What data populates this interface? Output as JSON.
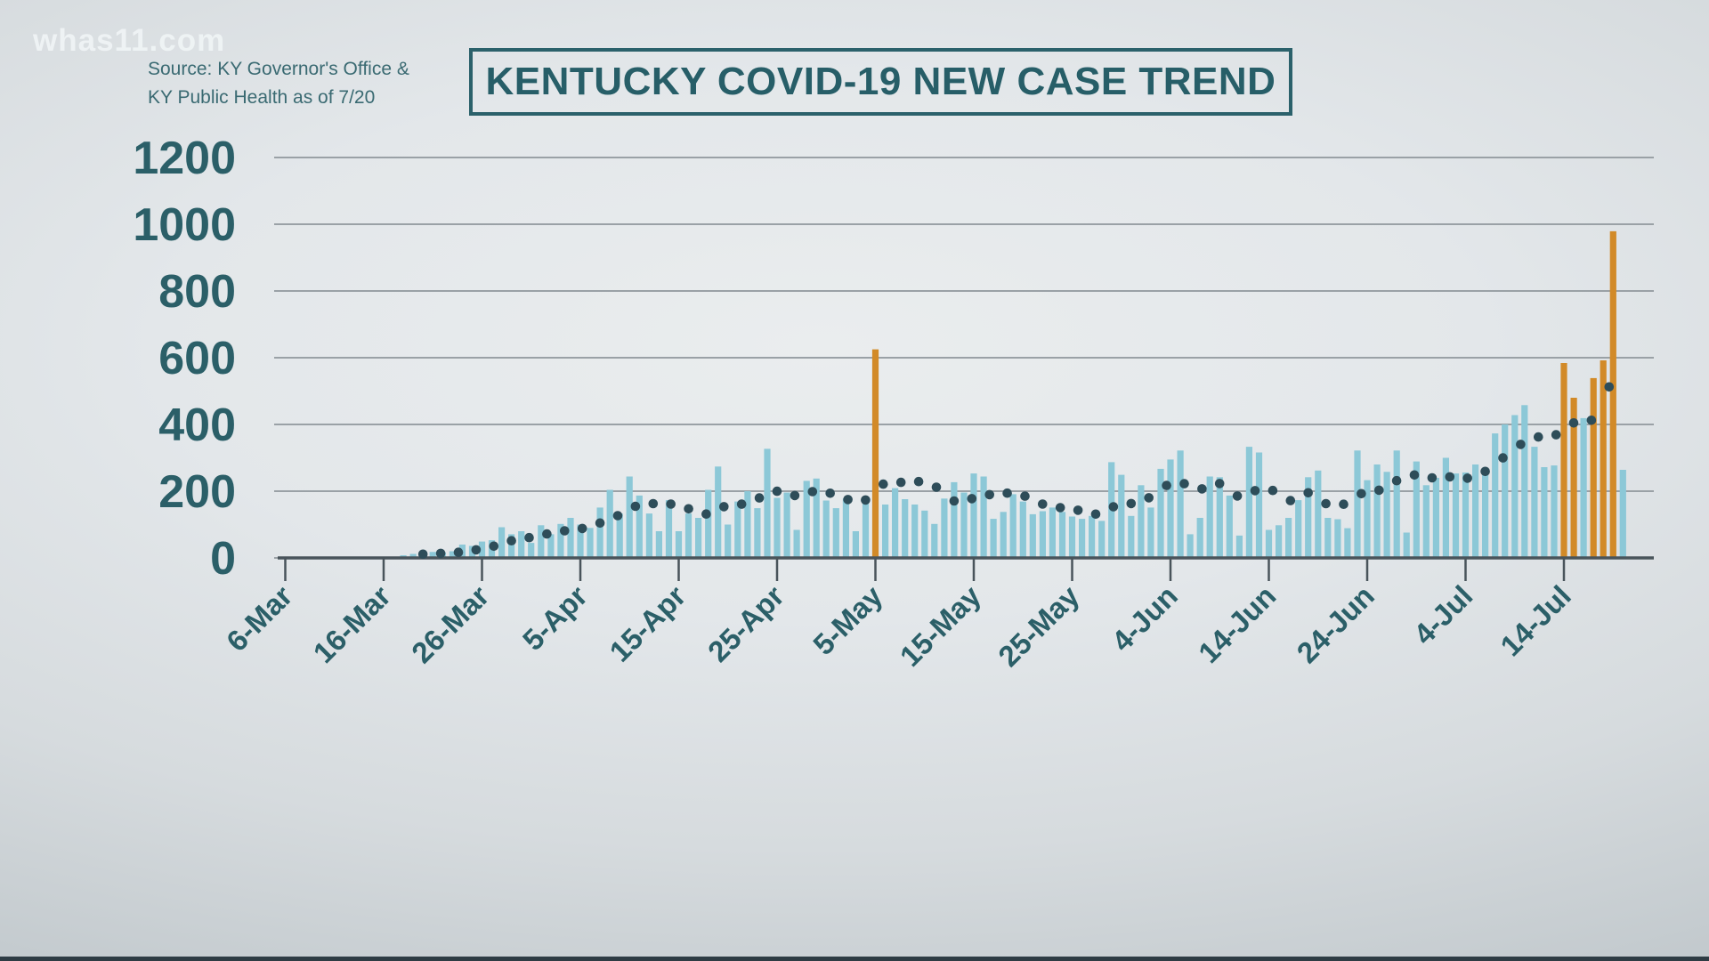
{
  "branding": {
    "logo_text": "whas11.com"
  },
  "source": {
    "line1": "Source: KY Governor's Office &",
    "line2": "KY Public Health as of 7/20"
  },
  "colors": {
    "bar": "#8cc8d7",
    "highlight": "#d28a28",
    "avg_dot": "#2e4d59",
    "grid": "#9aa1a6",
    "axis": "#49545b",
    "tick": "#49545b",
    "axis_text": "#2b5f68",
    "title": "#275e68"
  },
  "chart_data": {
    "type": "bar",
    "title": "KENTUCKY COVID-19 NEW CASE TREND",
    "xlabel": "",
    "ylabel": "",
    "ylim": [
      0,
      1200
    ],
    "y_ticks": [
      0,
      200,
      400,
      600,
      800,
      1000,
      1200
    ],
    "x_tick_labels": [
      "6-Mar",
      "16-Mar",
      "26-Mar",
      "5-Apr",
      "15-Apr",
      "25-Apr",
      "5-May",
      "15-May",
      "25-May",
      "4-Jun",
      "14-Jun",
      "24-Jun",
      "4-Jul",
      "14-Jul"
    ],
    "x_tick_interval_days": 10,
    "grid": true,
    "legend": "none",
    "series_start_date": "18-Mar",
    "series_start_offset_days_from_6_Mar": 12,
    "series": [
      {
        "name": "daily-new-cases",
        "type": "bar",
        "values": [
          8,
          12,
          14,
          18,
          16,
          20,
          40,
          36,
          49,
          53,
          92,
          71,
          80,
          45,
          98,
          71,
          102,
          120,
          100,
          90,
          151,
          204,
          133,
          244,
          187,
          133,
          80,
          173,
          80,
          133,
          120,
          204,
          274,
          100,
          169,
          200,
          149,
          327,
          180,
          196,
          84,
          231,
          238,
          172,
          149,
          178,
          80,
          167,
          625,
          160,
          209,
          176,
          160,
          142,
          102,
          178,
          227,
          196,
          253,
          244,
          117,
          138,
          191,
          169,
          131,
          140,
          151,
          138,
          124,
          117,
          126,
          111,
          287,
          249,
          126,
          218,
          151,
          267,
          295,
          322,
          71,
          120,
          244,
          242,
          187,
          67,
          333,
          316,
          84,
          98,
          120,
          173,
          242,
          262,
          120,
          116,
          89,
          322,
          233,
          280,
          258,
          322,
          76,
          289,
          218,
          240,
          300,
          253,
          256,
          280,
          268,
          373,
          400,
          428,
          458,
          333,
          272,
          277,
          584,
          480,
          419,
          539,
          592,
          979,
          264
        ],
        "highlight_indices": [
          48,
          118,
          119,
          121,
          122,
          123
        ],
        "highlight_dates": [
          "5-May",
          "14-Jul",
          "15-Jul",
          "17-Jul",
          "18-Jul",
          "19-Jul"
        ],
        "peak_value": 979,
        "peak_date": "19-Jul"
      },
      {
        "name": "7-day-moving-average",
        "type": "dotted-line",
        "derived": "trailing-7-day-average-of-daily-new-cases"
      }
    ]
  }
}
